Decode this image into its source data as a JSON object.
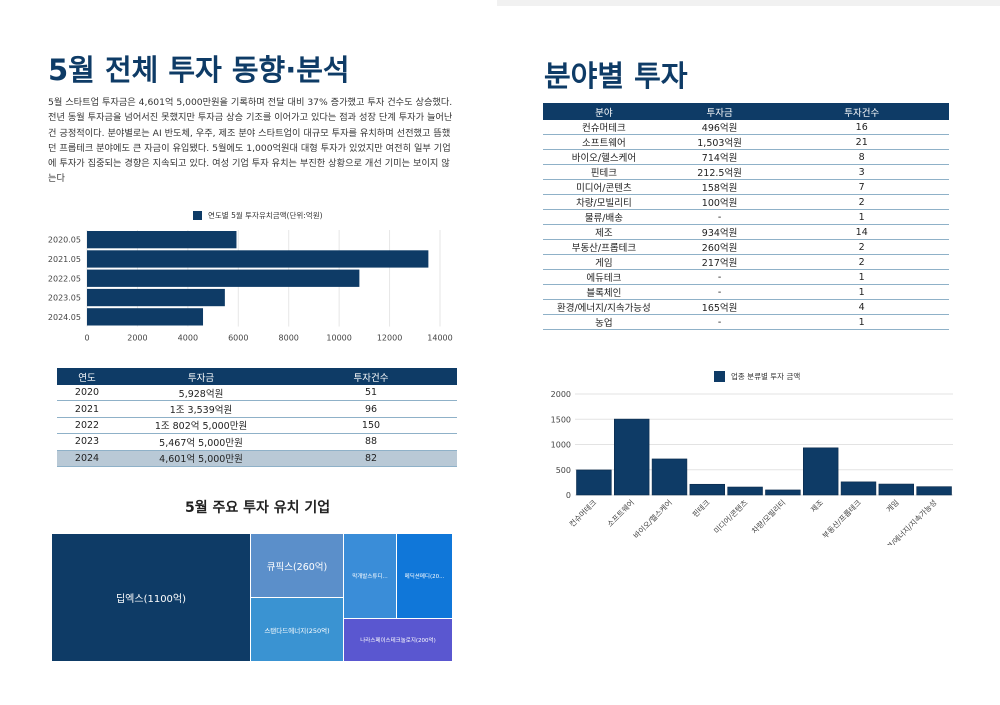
{
  "left": {
    "title": "5월 전체 투자 동향·분석",
    "paragraph": "5월 스타트업 투자금은 4,601억 5,000만원을 기록하며 전달 대비 37% 증가했고 투자 건수도 상승했다. 전년 동월 투자금을 넘어서진 못했지만 투자금 상승 기조를 이어가고 있다는 점과 성장 단계 투자가 늘어난 건 긍정적이다. 분야별로는 AI 반도체, 우주, 제조 분야 스타트업이 대규모 투자를 유치하며 선전했고 뜸했던 프롭테크 분야에도 큰 자금이 유입됐다. 5월에도 1,000억원대 대형 투자가 있었지만 여전히 일부 기업에 투자가 집중되는 경향은 지속되고 있다. 여성 기업 투자 유치는 부진한 상황으로 개선 기미는 보이지 않는다",
    "bar_legend": "연도별 5월 투자유치금액(단위:억원)",
    "table": {
      "headers": [
        "연도",
        "투자금",
        "투자건수"
      ],
      "rows": [
        [
          "2020",
          "5,928억원",
          "51"
        ],
        [
          "2021",
          "1조 3,539억원",
          "96"
        ],
        [
          "2022",
          "1조 802억 5,000만원",
          "150"
        ],
        [
          "2023",
          "5,467억 5,000만원",
          "88"
        ],
        [
          "2024",
          "4,601억 5,000만원",
          "82"
        ]
      ]
    },
    "treemap_title": "5월 주요 투자 유치 기업",
    "treemap": [
      {
        "label": "딥엑스(1100억)",
        "value": 1100,
        "color": "#0e3b66"
      },
      {
        "label": "큐픽스(260억)",
        "value": 260,
        "color": "#5b8fca"
      },
      {
        "label": "스탠다드에너지(250억)",
        "value": 250,
        "color": "#3a93d2"
      },
      {
        "label": "막개발스튜디...",
        "value": 230,
        "color": "#3a8dd8"
      },
      {
        "label": "메딕션메디(20...",
        "value": 220,
        "color": "#1077d9"
      },
      {
        "label": "나라스페이스테크놀로지(200억)",
        "value": 200,
        "color": "#5a57d0"
      }
    ]
  },
  "right": {
    "title": "분야별 투자",
    "table": {
      "headers": [
        "분야",
        "투자금",
        "투자건수"
      ],
      "rows": [
        [
          "컨슈머테크",
          "496억원",
          "16"
        ],
        [
          "소프트웨어",
          "1,503억원",
          "21"
        ],
        [
          "바이오/헬스케어",
          "714억원",
          "8"
        ],
        [
          "핀테크",
          "212.5억원",
          "3"
        ],
        [
          "미디어/콘텐츠",
          "158억원",
          "7"
        ],
        [
          "차량/모빌리티",
          "100억원",
          "2"
        ],
        [
          "물류/배송",
          "-",
          "1"
        ],
        [
          "제조",
          "934억원",
          "14"
        ],
        [
          "부동산/프롭테크",
          "260억원",
          "2"
        ],
        [
          "게임",
          "217억원",
          "2"
        ],
        [
          "에듀테크",
          "-",
          "1"
        ],
        [
          "블록체인",
          "-",
          "1"
        ],
        [
          "환경/에너지/지속가능성",
          "165억원",
          "4"
        ],
        [
          "농업",
          "-",
          "1"
        ]
      ]
    },
    "bar_legend": "업종 분류별 투자 금액"
  },
  "chart_data": [
    {
      "type": "bar",
      "orientation": "horizontal",
      "categories": [
        "2020.05",
        "2021.05",
        "2022.05",
        "2023.05",
        "2024.05"
      ],
      "values": [
        5928,
        13539,
        10802.5,
        5467.5,
        4601.5
      ],
      "legend": "연도별 5월 투자유치금액(단위:억원)",
      "xlim": [
        0,
        14000
      ],
      "xticks": [
        0,
        2000,
        4000,
        6000,
        8000,
        10000,
        12000,
        14000
      ],
      "color": "#0e3b66",
      "legend_position": "top"
    },
    {
      "type": "bar",
      "orientation": "vertical",
      "categories": [
        "컨슈머테크",
        "소프트웨어",
        "바이오/헬스케어",
        "핀테크",
        "미디어/콘텐츠",
        "차량/모빌리티",
        "제조",
        "부동산/프롭테크",
        "게임",
        "환경/에너지/지속가능성"
      ],
      "values": [
        496,
        1503,
        714,
        212.5,
        158,
        100,
        934,
        260,
        217,
        165
      ],
      "legend": "업종 분류별 투자 금액",
      "ylim": [
        0,
        2000
      ],
      "yticks": [
        0,
        500,
        1000,
        1500,
        2000
      ],
      "grid": true,
      "color": "#0e3b66",
      "legend_position": "top"
    }
  ]
}
